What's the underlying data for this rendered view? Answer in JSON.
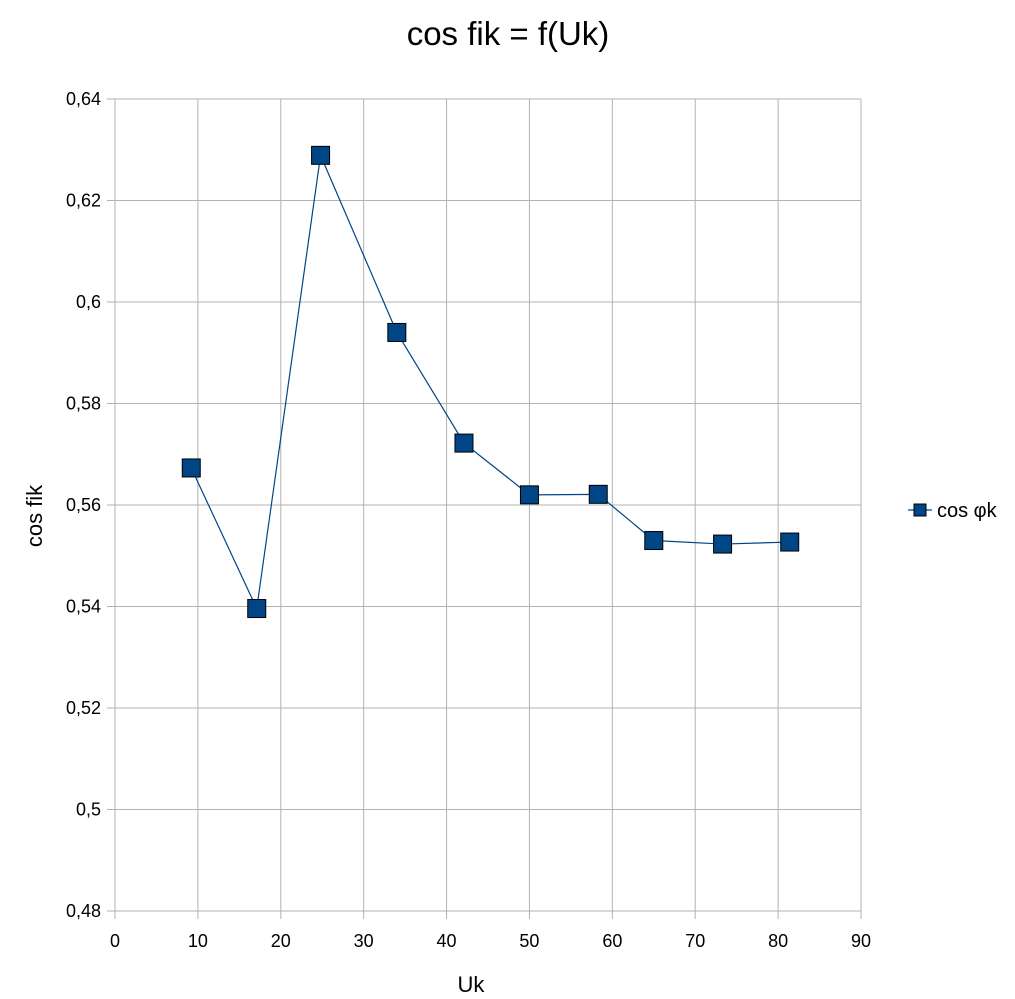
{
  "chart_data": {
    "type": "line",
    "title": "cos fik = f(Uk)",
    "xlabel": "Uk",
    "ylabel": "cos fik",
    "xlim": [
      0,
      90
    ],
    "ylim": [
      0.48,
      0.64
    ],
    "x_ticks": [
      0,
      10,
      20,
      30,
      40,
      50,
      60,
      70,
      80,
      90
    ],
    "x_tick_labels": [
      "0",
      "10",
      "20",
      "30",
      "40",
      "50",
      "60",
      "70",
      "80",
      "90"
    ],
    "y_ticks": [
      0.48,
      0.5,
      0.52,
      0.54,
      0.56,
      0.58,
      0.6,
      0.62,
      0.64
    ],
    "y_tick_labels": [
      "0,48",
      "0,5",
      "0,52",
      "0,54",
      "0,56",
      "0,58",
      "0,6",
      "0,62",
      "0,64"
    ],
    "grid": true,
    "legend_position": "right",
    "series": [
      {
        "name": "cos φk",
        "color": "#004586",
        "marker": "square",
        "x": [
          9.2,
          17.1,
          24.8,
          34.0,
          42.1,
          50.0,
          58.3,
          65.0,
          73.3,
          81.4
        ],
        "y": [
          0.5673,
          0.5396,
          0.6289,
          0.594,
          0.5722,
          0.562,
          0.5621,
          0.553,
          0.5523,
          0.5527
        ]
      }
    ]
  }
}
